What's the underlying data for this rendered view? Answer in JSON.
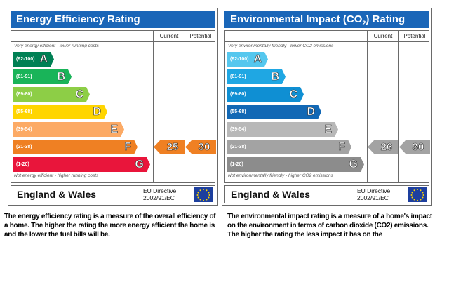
{
  "energy": {
    "title": "Energy Efficiency Rating",
    "col_current": "Current",
    "col_potential": "Potential",
    "top_note": "Very energy efficient - lower running costs",
    "bottom_note": "Not energy efficient - higher running costs",
    "bands": [
      {
        "range": "(92-100)",
        "letter": "A",
        "color": "#008054",
        "width_frac": 0.3
      },
      {
        "range": "(81-91)",
        "letter": "B",
        "color": "#19b459",
        "width_frac": 0.43
      },
      {
        "range": "(69-80)",
        "letter": "C",
        "color": "#8dce46",
        "width_frac": 0.56
      },
      {
        "range": "(55-68)",
        "letter": "D",
        "color": "#ffd500",
        "width_frac": 0.69
      },
      {
        "range": "(39-54)",
        "letter": "E",
        "color": "#fcaa65",
        "width_frac": 0.81
      },
      {
        "range": "(21-38)",
        "letter": "F",
        "color": "#ef8023",
        "width_frac": 0.91
      },
      {
        "range": "(1-20)",
        "letter": "G",
        "color": "#e9153b",
        "width_frac": 1.0
      }
    ],
    "current": {
      "value": "25",
      "band": 5,
      "color": "#ef8023"
    },
    "potential": {
      "value": "30",
      "band": 5,
      "color": "#ef8023"
    },
    "region": "England & Wales",
    "directive_line1": "EU Directive",
    "directive_line2": "2002/91/EC",
    "description": "The energy efficiency rating is a measure of the overall efficiency of a home. The higher the rating the more energy efficient the home is and the lower the fuel bills will be."
  },
  "environment": {
    "title_pre": "Environmental Impact (CO",
    "title_sub": "2",
    "title_post": ") Rating",
    "col_current": "Current",
    "col_potential": "Potential",
    "top_note": "Very environmentally friendly - lower CO2 emissions",
    "bottom_note": "Not environmentally friendly - higher CO2 emissions",
    "bands": [
      {
        "range": "(92-100)",
        "letter": "A",
        "color": "#55c7ee",
        "width_frac": 0.3
      },
      {
        "range": "(81-91)",
        "letter": "B",
        "color": "#1fa7e3",
        "width_frac": 0.43
      },
      {
        "range": "(69-80)",
        "letter": "C",
        "color": "#0f8fd3",
        "width_frac": 0.56
      },
      {
        "range": "(55-68)",
        "letter": "D",
        "color": "#1268b5",
        "width_frac": 0.69
      },
      {
        "range": "(39-54)",
        "letter": "E",
        "color": "#b8b8b8",
        "width_frac": 0.81
      },
      {
        "range": "(21-38)",
        "letter": "F",
        "color": "#a3a3a3",
        "width_frac": 0.91
      },
      {
        "range": "(1-20)",
        "letter": "G",
        "color": "#8c8c8c",
        "width_frac": 1.0
      }
    ],
    "current": {
      "value": "26",
      "band": 5,
      "color": "#a3a3a3"
    },
    "potential": {
      "value": "30",
      "band": 5,
      "color": "#a3a3a3"
    },
    "region": "England & Wales",
    "directive_line1": "EU Directive",
    "directive_line2": "2002/91/EC",
    "description": "The environmental impact rating is a measure of a home's impact on the environment in terms of carbon dioxide (CO2) emissions. The higher the rating the less impact it has on the"
  }
}
